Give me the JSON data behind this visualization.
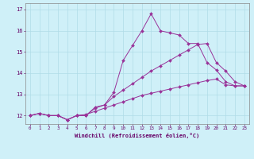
{
  "title": "",
  "xlabel": "Windchill (Refroidissement éolien,°C)",
  "ylabel": "",
  "background_color": "#cff0f8",
  "grid_color": "#b0dce8",
  "line_color": "#993399",
  "xlim": [
    -0.5,
    23.5
  ],
  "ylim": [
    11.6,
    17.3
  ],
  "yticks": [
    12,
    13,
    14,
    15,
    16,
    17
  ],
  "xticks": [
    0,
    1,
    2,
    3,
    4,
    5,
    6,
    7,
    8,
    9,
    10,
    11,
    12,
    13,
    14,
    15,
    16,
    17,
    18,
    19,
    20,
    21,
    22,
    23
  ],
  "series": [
    {
      "x": [
        0,
        1,
        2,
        3,
        4,
        5,
        6,
        7,
        8,
        9,
        10,
        11,
        12,
        13,
        14,
        15,
        16,
        17,
        18,
        19,
        20,
        21,
        22,
        23
      ],
      "y": [
        12.0,
        12.1,
        12.0,
        12.0,
        11.8,
        12.0,
        12.0,
        12.4,
        12.5,
        13.1,
        14.6,
        15.3,
        16.0,
        16.8,
        16.0,
        15.9,
        15.8,
        15.4,
        15.4,
        14.5,
        14.15,
        13.6,
        13.4,
        13.4
      ]
    },
    {
      "x": [
        0,
        1,
        2,
        3,
        4,
        5,
        6,
        7,
        8,
        9,
        10,
        11,
        12,
        13,
        14,
        15,
        16,
        17,
        18,
        19,
        20,
        21,
        22,
        23
      ],
      "y": [
        12.0,
        12.1,
        12.0,
        12.0,
        11.8,
        12.0,
        12.0,
        12.35,
        12.5,
        12.9,
        13.2,
        13.5,
        13.8,
        14.1,
        14.35,
        14.6,
        14.85,
        15.1,
        15.35,
        15.4,
        14.5,
        14.1,
        13.6,
        13.4
      ]
    },
    {
      "x": [
        0,
        1,
        2,
        3,
        4,
        5,
        6,
        7,
        8,
        9,
        10,
        11,
        12,
        13,
        14,
        15,
        16,
        17,
        18,
        19,
        20,
        21,
        22,
        23
      ],
      "y": [
        12.0,
        12.1,
        12.0,
        12.0,
        11.8,
        12.0,
        12.05,
        12.2,
        12.35,
        12.5,
        12.65,
        12.8,
        12.95,
        13.05,
        13.15,
        13.25,
        13.35,
        13.45,
        13.55,
        13.65,
        13.72,
        13.45,
        13.4,
        13.4
      ]
    }
  ]
}
